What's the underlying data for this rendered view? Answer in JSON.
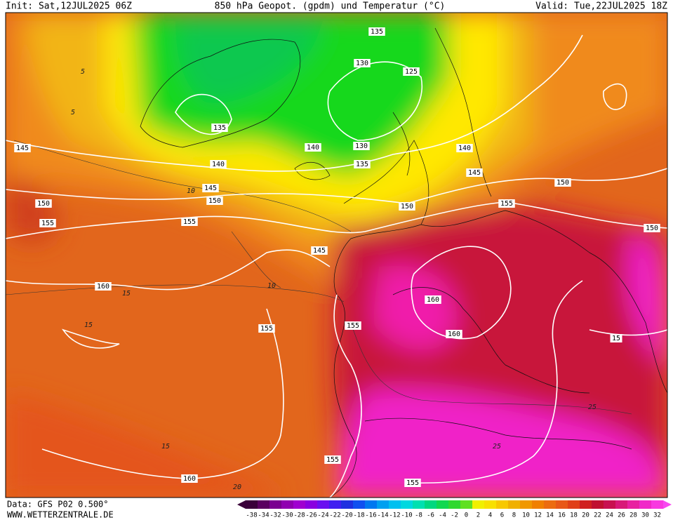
{
  "header": {
    "init": "Init: Sat,12JUL2025 06Z",
    "title": "850 hPa Geopot. (gpdm) und Temperatur (°C)",
    "valid": "Valid: Tue,22JUL2025 18Z"
  },
  "footer": {
    "data": "Data: GFS P02 0.500°",
    "site": "WWW.WETTERZENTRALE.DE"
  },
  "scale_labels": [
    "-38",
    "-34",
    "-32",
    "-30",
    "-28",
    "-26",
    "-24",
    "-22",
    "-20",
    "-18",
    "-16",
    "-14",
    "-12",
    "-10",
    "-8",
    "-6",
    "-4",
    "-2",
    "0",
    "2",
    "4",
    "6",
    "8",
    "10",
    "12",
    "14",
    "16",
    "18",
    "20",
    "22",
    "24",
    "26",
    "28",
    "30",
    "32"
  ],
  "geopotential_labels": [
    "135",
    "130",
    "125",
    "135",
    "145",
    "140",
    "130",
    "140",
    "140",
    "135",
    "145",
    "150",
    "145",
    "150",
    "150",
    "150",
    "155",
    "155",
    "155",
    "150",
    "145",
    "160",
    "160",
    "155",
    "155",
    "160",
    "15",
    "155",
    "160",
    "155"
  ],
  "temperature_labels": [
    "5",
    "5",
    "10",
    "10",
    "15",
    "15",
    "15",
    "20",
    "25",
    "25"
  ]
}
